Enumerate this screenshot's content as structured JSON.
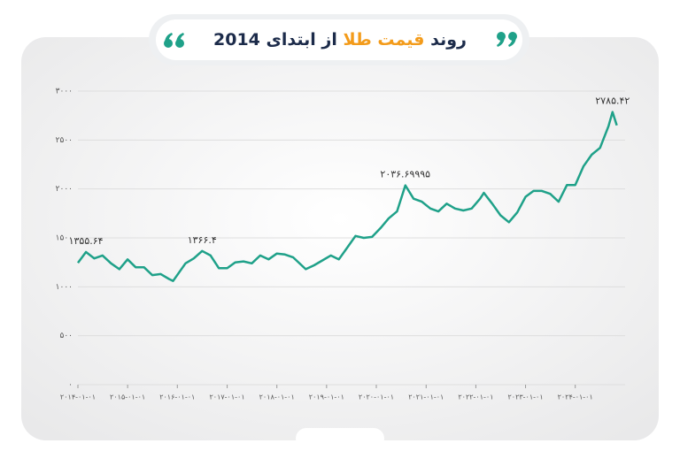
{
  "chart_data": {
    "type": "line",
    "title_segments": [
      {
        "text": "روند",
        "color": "#1c2b4a"
      },
      {
        "text": "قیمت طلا",
        "color": "#f39b1a"
      },
      {
        "text": "از ابتدای 2014",
        "color": "#1c2b4a"
      }
    ],
    "x": [
      "2014-01-01",
      "2014-03-01",
      "2014-05-01",
      "2014-07-01",
      "2014-09-01",
      "2014-11-01",
      "2015-01-01",
      "2015-03-01",
      "2015-05-01",
      "2015-07-01",
      "2015-09-01",
      "2015-11-01",
      "2015-12-01",
      "2016-03-01",
      "2016-05-01",
      "2016-07-01",
      "2016-09-01",
      "2016-11-01",
      "2017-01-01",
      "2017-03-01",
      "2017-05-01",
      "2017-07-01",
      "2017-09-01",
      "2017-11-01",
      "2018-01-01",
      "2018-03-01",
      "2018-05-01",
      "2018-08-01",
      "2018-10-01",
      "2018-12-01",
      "2019-02-01",
      "2019-04-01",
      "2019-06-01",
      "2019-08-01",
      "2019-10-01",
      "2019-12-01",
      "2020-02-01",
      "2020-04-01",
      "2020-06-01",
      "2020-08-01",
      "2020-10-01",
      "2020-12-01",
      "2021-02-01",
      "2021-04-01",
      "2021-06-01",
      "2021-08-01",
      "2021-10-01",
      "2021-12-01",
      "2022-02-01",
      "2022-03-01",
      "2022-05-01",
      "2022-07-01",
      "2022-09-01",
      "2022-11-01",
      "2023-01-01",
      "2023-03-01",
      "2023-05-01",
      "2023-07-01",
      "2023-09-01",
      "2023-11-01",
      "2024-01-01",
      "2024-03-01",
      "2024-05-01",
      "2024-07-01",
      "2024-09-01",
      "2024-10-01",
      "2024-11-01"
    ],
    "series": [
      {
        "color": "#1fa189",
        "values": [
          1245,
          1355.64,
          1290,
          1320,
          1240,
          1180,
          1280,
          1200,
          1200,
          1120,
          1130,
          1080,
          1060,
          1240,
          1290,
          1366.4,
          1320,
          1190,
          1190,
          1250,
          1260,
          1240,
          1320,
          1280,
          1340,
          1330,
          1300,
          1180,
          1220,
          1270,
          1320,
          1280,
          1400,
          1520,
          1500,
          1510,
          1600,
          1700,
          1770,
          2036.69995,
          1900,
          1870,
          1800,
          1770,
          1850,
          1800,
          1780,
          1800,
          1900,
          1960,
          1850,
          1730,
          1660,
          1760,
          1920,
          1980,
          1980,
          1950,
          1870,
          2040,
          2040,
          2230,
          2350,
          2420,
          2640,
          2785.42,
          2650
        ]
      }
    ],
    "annotations": [
      {
        "x": "2014-03-01",
        "value": 1355.64,
        "label": "۱۳۵۵.۶۴"
      },
      {
        "x": "2016-07-01",
        "value": 1366.4,
        "label": "۱۳۶۶.۴"
      },
      {
        "x": "2020-08-01",
        "value": 2036.69995,
        "label": "۲۰۳۶.۶۹۹۹۵"
      },
      {
        "x": "2024-10-01",
        "value": 2785.42,
        "label": "۲۷۸۵.۴۲"
      }
    ],
    "xlim": [
      "2014-01-01",
      "2025-01-01"
    ],
    "xticks": [
      {
        "value": "2014-01-01",
        "label": "۲۰۱۴-۰۱-۰۱"
      },
      {
        "value": "2015-01-01",
        "label": "۲۰۱۵-۰۱-۰۱"
      },
      {
        "value": "2016-01-01",
        "label": "۲۰۱۶-۰۱-۰۱"
      },
      {
        "value": "2017-01-01",
        "label": "۲۰۱۷-۰۱-۰۱"
      },
      {
        "value": "2018-01-01",
        "label": "۲۰۱۸-۰۱-۰۱"
      },
      {
        "value": "2019-01-01",
        "label": "۲۰۱۹-۰۱-۰۱"
      },
      {
        "value": "2020-01-01",
        "label": "۲۰۲۰-۰۱-۰۱"
      },
      {
        "value": "2021-01-01",
        "label": "۲۰۲۱-۰۱-۰۱"
      },
      {
        "value": "2022-01-01",
        "label": "۲۰۲۲-۰۱-۰۱"
      },
      {
        "value": "2023-01-01",
        "label": "۲۰۲۳-۰۱-۰۱"
      },
      {
        "value": "2024-01-01",
        "label": "۲۰۲۴-۰۱-۰۱"
      }
    ],
    "ylim": [
      0,
      3000
    ],
    "yticks": [
      {
        "value": 0,
        "label": "۰"
      },
      {
        "value": 500,
        "label": "۵۰۰"
      },
      {
        "value": 1000,
        "label": "۱۰۰۰"
      },
      {
        "value": 1500,
        "label": "۱۵۰۰"
      },
      {
        "value": 2000,
        "label": "۲۰۰۰"
      },
      {
        "value": 2500,
        "label": "۲۵۰۰"
      },
      {
        "value": 3000,
        "label": "۳۰۰۰"
      }
    ],
    "grid": true
  }
}
